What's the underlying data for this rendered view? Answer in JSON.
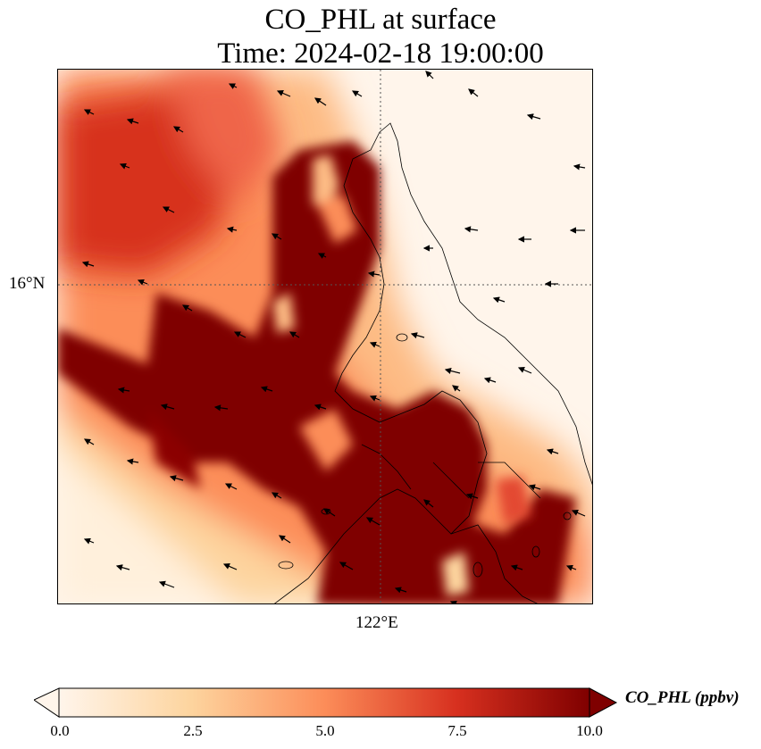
{
  "title": {
    "line1": "CO_PHL at surface",
    "line2": "Time: 2024-02-18 19:00:00"
  },
  "map": {
    "lat_tick_label": "16°N",
    "lon_tick_label": "122°E",
    "gridline_style": "dotted",
    "field": "CO_PHL concentration with surface wind vectors",
    "colormap": "OrRd",
    "colors": {
      "low": "#fff5eb",
      "mid_low": "#fdd49e",
      "mid": "#fc8d59",
      "mid_high": "#d7301f",
      "high": "#7f0000",
      "coastline": "#000000",
      "arrows": "#000000"
    }
  },
  "colorbar": {
    "label": "CO_PHL (ppbv)",
    "range": [
      0.0,
      10.0
    ],
    "extend": "both",
    "ticks": [
      "0.0",
      "2.5",
      "5.0",
      "7.5",
      "10.0"
    ]
  }
}
